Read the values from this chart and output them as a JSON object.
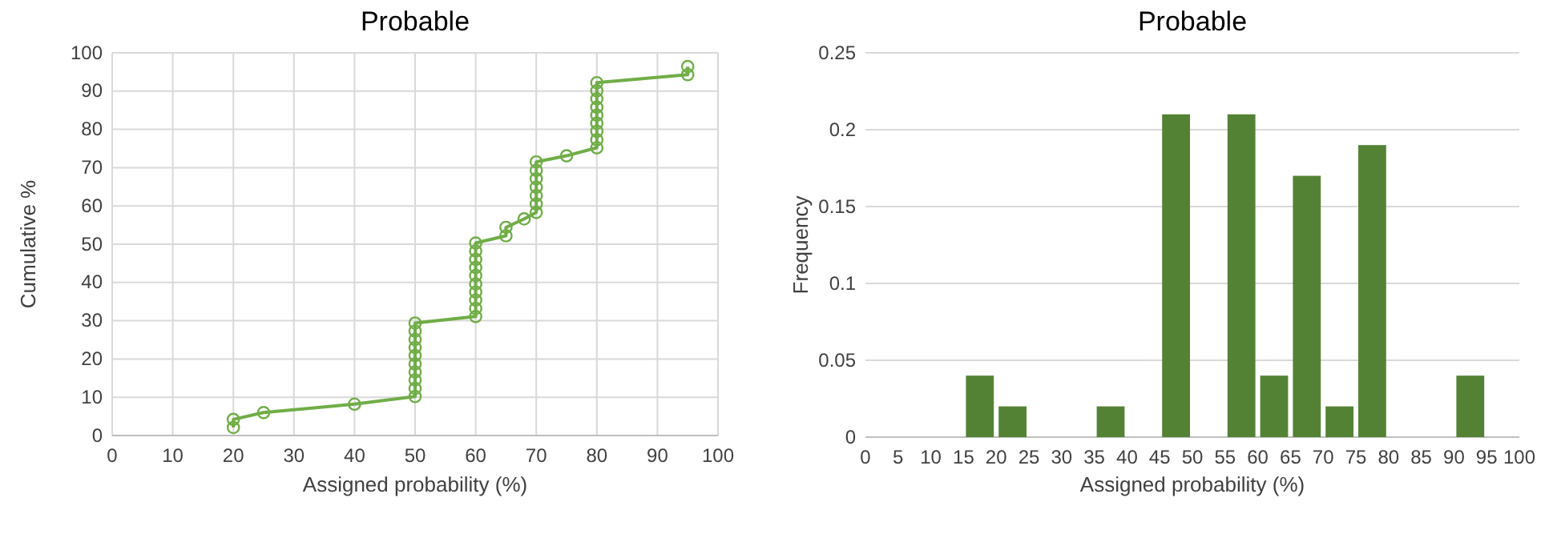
{
  "chart_data": [
    {
      "type": "line",
      "title": "Probable",
      "xlabel": "Assigned probability (%)",
      "ylabel": "Cumulative %",
      "xlim": [
        0,
        100
      ],
      "xticks": [
        0,
        10,
        20,
        30,
        40,
        50,
        60,
        70,
        80,
        90,
        100
      ],
      "ylim": [
        0,
        100
      ],
      "yticks": [
        0,
        10,
        20,
        30,
        40,
        50,
        60,
        70,
        80,
        90,
        100
      ],
      "grid": true,
      "marker": "circle",
      "line_style": "solid",
      "series": [
        {
          "color": "#70ad47",
          "x": [
            20,
            20,
            25,
            40,
            50,
            50,
            50,
            50,
            50,
            50,
            50,
            50,
            50,
            50,
            60,
            60,
            60,
            60,
            60,
            60,
            60,
            60,
            60,
            60,
            65,
            65,
            68,
            70,
            70,
            70,
            70,
            70,
            70,
            70,
            75,
            80,
            80,
            80,
            80,
            80,
            80,
            80,
            80,
            80,
            95,
            95
          ],
          "values": [
            2.1,
            4.2,
            6.0,
            8.2,
            10.2,
            12.3,
            14.5,
            16.6,
            18.7,
            20.9,
            23.0,
            25.1,
            27.3,
            29.4,
            31.1,
            33.2,
            35.4,
            37.5,
            39.6,
            41.8,
            43.9,
            46.0,
            48.2,
            50.3,
            52.2,
            54.4,
            56.6,
            58.3,
            60.5,
            62.7,
            64.9,
            67.1,
            69.3,
            71.5,
            73.1,
            75.2,
            77.3,
            79.5,
            81.6,
            83.7,
            85.8,
            88.0,
            90.1,
            92.2,
            94.3,
            96.4
          ]
        }
      ]
    },
    {
      "type": "histogram",
      "title": "Probable",
      "xlabel": "Assigned probability (%)",
      "ylabel": "Frequency",
      "color": "#548235",
      "grid": "y",
      "bins": [
        0,
        5,
        10,
        15,
        20,
        25,
        30,
        35,
        40,
        45,
        50,
        55,
        60,
        65,
        70,
        75,
        80,
        85,
        90,
        95,
        100
      ],
      "values": [
        0,
        0,
        0,
        0.04,
        0.02,
        0,
        0,
        0.02,
        0,
        0.21,
        0,
        0.21,
        0.04,
        0.17,
        0.02,
        0.19,
        0,
        0,
        0.04,
        0
      ],
      "xlim": [
        0,
        100
      ],
      "xticks": [
        0,
        5,
        10,
        15,
        20,
        25,
        30,
        35,
        40,
        45,
        50,
        55,
        60,
        65,
        70,
        75,
        80,
        85,
        90,
        95,
        100
      ],
      "ylim": [
        0,
        0.25
      ],
      "yticks": [
        0,
        0.05,
        0.1,
        0.15,
        0.2,
        0.25
      ]
    }
  ]
}
